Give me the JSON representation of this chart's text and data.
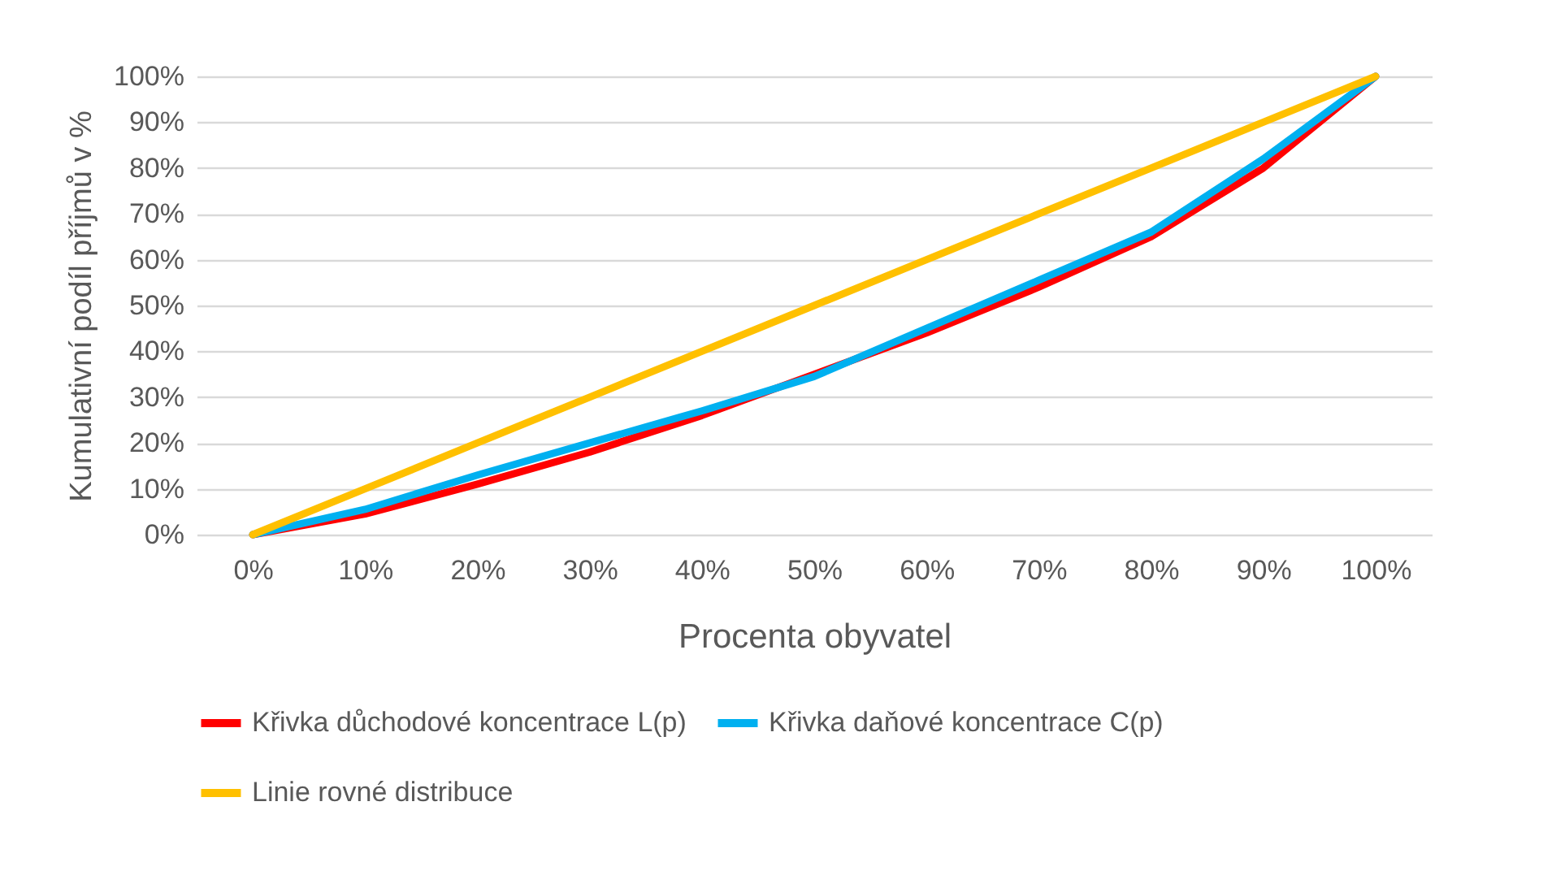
{
  "chart_data": {
    "type": "line",
    "xlabel": "Procenta obyvatel",
    "ylabel": "Kumulativní podíl příjmů v %",
    "categories": [
      "0%",
      "10%",
      "20%",
      "30%",
      "40%",
      "50%",
      "60%",
      "70%",
      "80%",
      "90%",
      "100%"
    ],
    "series": [
      {
        "name": "Křivka důchodové koncentrace L(p)",
        "color": "#ff0000",
        "values": [
          0,
          4.5,
          11,
          18,
          26,
          35,
          44,
          54,
          65,
          80,
          100
        ]
      },
      {
        "name": "Křivka daňové koncentrace C(p)",
        "color": "#00b0f0",
        "values": [
          0,
          5.5,
          13,
          20,
          27,
          34.5,
          45,
          55.5,
          66,
          82,
          100
        ]
      },
      {
        "name": "Linie rovné distribuce",
        "color": "#ffc000",
        "values": [
          0,
          10,
          20,
          30,
          40,
          50,
          60,
          70,
          80,
          90,
          100
        ]
      }
    ],
    "ylim": [
      0,
      100
    ],
    "yticks": [
      {
        "value": 0,
        "label": "0%"
      },
      {
        "value": 10,
        "label": "10%"
      },
      {
        "value": 20,
        "label": "20%"
      },
      {
        "value": 30,
        "label": "30%"
      },
      {
        "value": 40,
        "label": "40%"
      },
      {
        "value": 50,
        "label": "50%"
      },
      {
        "value": 60,
        "label": "60%"
      },
      {
        "value": 70,
        "label": "70%"
      },
      {
        "value": 80,
        "label": "80%"
      },
      {
        "value": 90,
        "label": "90%"
      },
      {
        "value": 100,
        "label": "100%"
      }
    ],
    "grid": "y",
    "legend": "bottom",
    "marker": "none",
    "line_style": "solid"
  }
}
